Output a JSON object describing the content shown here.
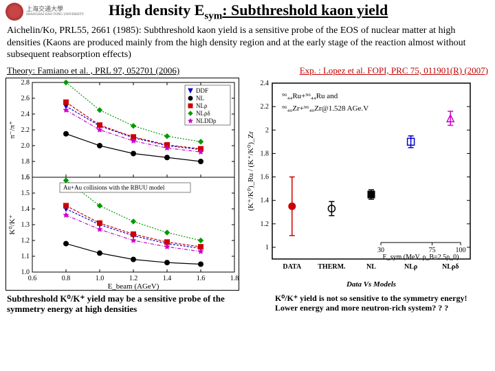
{
  "header": {
    "logo_text_top": "上海交通大學",
    "logo_text_bottom": "SHANGHAI JIAO TONG UNIVERSITY",
    "title_prefix": "High density E",
    "title_sub": "sym",
    "title_suffix": ": Subthreshold kaon yield"
  },
  "intro": "Aichelin/Ko, PRL55, 2661 (1985): Subthreshold kaon yield is a sensitive probe of the EOS of nuclear matter at high densities (Kaons are produced mainly from the high density region and at the early stage of the reaction almost without subsequent reabsorption effects)",
  "ref_theory": "Theory: Famiano et al. , PRL 97, 052701 (2006)",
  "ref_exp": "Exp. : Lopez et al. FOPI, PRC 75, 011901(R) (2007)",
  "left_chart": {
    "xlabel": "E_beam (AGeV)",
    "ylabel_top": "π⁻/π⁺",
    "ylabel_bot": "K⁰/K⁺",
    "xlim": [
      0.6,
      1.8
    ],
    "xticks": [
      0.6,
      0.8,
      1.0,
      1.2,
      1.4,
      1.6,
      1.8
    ],
    "ylim_top": [
      1.6,
      2.8
    ],
    "yticks_top": [
      1.6,
      1.8,
      2.0,
      2.2,
      2.4,
      2.6,
      2.8
    ],
    "ylim_bot": [
      1.0,
      1.6
    ],
    "yticks_bot": [
      1.0,
      1.1,
      1.2,
      1.3,
      1.4,
      1.5,
      1.6
    ],
    "annotation": "Au+Au collisions with the RBUU model",
    "legend": [
      {
        "label": "DDF",
        "color": "#0000cc",
        "marker": "triangle-down"
      },
      {
        "label": "NL",
        "color": "#000000",
        "marker": "circle"
      },
      {
        "label": "NLρ",
        "color": "#cc0000",
        "marker": "square"
      },
      {
        "label": "NLρδ",
        "color": "#009900",
        "marker": "diamond"
      },
      {
        "label": "NLDDρ",
        "color": "#cc00cc",
        "marker": "star"
      }
    ],
    "x": [
      0.8,
      1.0,
      1.2,
      1.4,
      1.6
    ],
    "series_top": {
      "DDF": [
        2.5,
        2.25,
        2.1,
        2.0,
        1.95
      ],
      "NL": [
        2.15,
        2.0,
        1.9,
        1.85,
        1.8
      ],
      "NLrho": [
        2.55,
        2.26,
        2.11,
        2.01,
        1.96
      ],
      "NLrhodelta": [
        2.8,
        2.45,
        2.25,
        2.12,
        2.05
      ],
      "NLDDrho": [
        2.45,
        2.2,
        2.06,
        1.97,
        1.92
      ]
    },
    "series_bot": {
      "DDF": [
        1.4,
        1.3,
        1.23,
        1.18,
        1.15
      ],
      "NL": [
        1.18,
        1.12,
        1.08,
        1.06,
        1.05
      ],
      "NLrho": [
        1.42,
        1.31,
        1.24,
        1.19,
        1.16
      ],
      "NLrhodelta": [
        1.58,
        1.42,
        1.32,
        1.25,
        1.2
      ],
      "NLDDrho": [
        1.36,
        1.27,
        1.2,
        1.16,
        1.13
      ]
    },
    "colors": {
      "DDF": "#0000cc",
      "NL": "#000000",
      "NLrho": "#cc0000",
      "NLrhodelta": "#009900",
      "NLDDrho": "#cc00cc"
    }
  },
  "right_chart": {
    "ylabel": "(K⁺/K⁰)_Ru / (K⁺/K⁰)_Zr",
    "ylim": [
      0.9,
      2.4
    ],
    "yticks": [
      1,
      1.2,
      1.4,
      1.6,
      1.8,
      2,
      2.2,
      2.4
    ],
    "annot1": "⁹⁶₄₄Ru+⁹⁶₄₄Ru and",
    "annot2": "⁹⁶₄₀Zr+⁹⁶₄₀Zr@1.528 AGe.V",
    "xcats": [
      "DATA",
      "THERM.",
      "NL",
      "NLρ",
      "NLρδ"
    ],
    "xcat_colors": [
      "#cc0000",
      "#000000",
      "#000000",
      "#0000cc",
      "#cc00cc"
    ],
    "bottom_label": "Data Vs Models",
    "inset": {
      "label": "E_sym (MeV, ρ_B=2.5ρ_0)",
      "xticks": [
        30,
        75,
        100
      ]
    },
    "points": {
      "DATA": {
        "y": 1.35,
        "err": 0.25,
        "color": "#cc0000",
        "marker": "circle"
      },
      "THERM": {
        "y": 1.33,
        "err": 0.06,
        "color": "#000000",
        "marker": "circle-open"
      },
      "NL": {
        "y": 1.45,
        "err": 0.04,
        "color": "#000000",
        "marker": "square"
      },
      "NLrho": {
        "y": 1.9,
        "err": 0.05,
        "color": "#0000cc",
        "marker": "square-open"
      },
      "NLrhodelta": {
        "y": 2.1,
        "err": 0.06,
        "color": "#cc00cc",
        "marker": "triangle-open"
      }
    }
  },
  "footer_left": "Subthreshold K⁰/K⁺ yield may be a sensitive probe of the symmetry energy at high densities",
  "footer_right": "K⁰/K⁺ yield is not so sensitive to the symmetry energy! Lower energy and more neutron-rich system? ? ?"
}
